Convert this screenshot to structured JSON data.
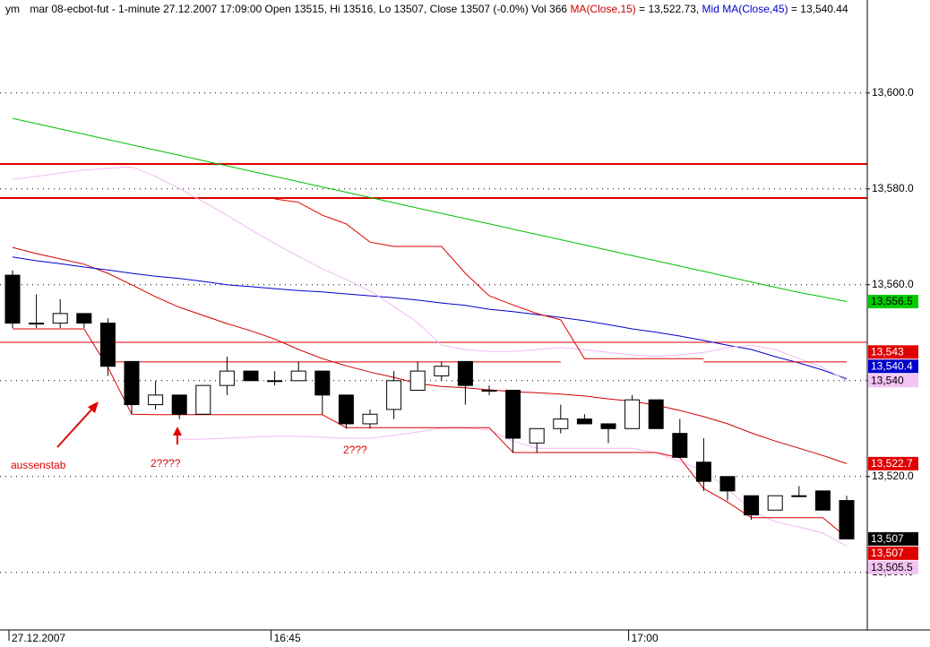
{
  "chart_data": {
    "type": "candlestick",
    "header": {
      "symbol": "ym",
      "info": "mar 08-ecbot-fut - 1-minute 27.12.2007 17:09:00 Open 13515, Hi 13516, Lo 13507, Close 13507 (-0.0%) Vol 366",
      "ma15_value": "= 13,522.73,",
      "ma45_value": "= 13,540.44"
    },
    "categories": [
      "27.12.2007",
      null,
      null,
      null,
      null,
      null,
      null,
      null,
      null,
      null,
      null,
      "16:45",
      null,
      null,
      null,
      null,
      null,
      null,
      null,
      null,
      null,
      null,
      null,
      null,
      null,
      null,
      "17:00",
      null,
      null,
      null,
      null,
      null,
      null,
      null,
      null,
      null
    ],
    "open": [
      13562,
      13552,
      13552,
      13554,
      13552,
      13544,
      13535,
      13537,
      13533,
      13539,
      13542,
      13540,
      13540,
      13542,
      13537,
      13531,
      13534,
      13538,
      13541,
      13544,
      13538,
      13538,
      13527,
      13530,
      13532,
      13531,
      13530,
      13536,
      13529,
      13523,
      13520,
      13516,
      13513,
      13516,
      13517,
      13515
    ],
    "high": [
      13563,
      13558,
      13557,
      13554,
      13553,
      13544,
      13540,
      13537,
      13539,
      13545,
      13542,
      13542,
      13544,
      13542,
      13537,
      13534,
      13542,
      13544,
      13544,
      13544,
      13539,
      13538,
      13530,
      13535,
      13533,
      13531,
      13537,
      13536,
      13532,
      13528,
      13520,
      13516,
      13516,
      13518,
      13517,
      13516
    ],
    "low": [
      13551,
      13551,
      13551,
      13551,
      13541,
      13533,
      13534,
      13532,
      13533,
      13537,
      13540,
      13539,
      13540,
      13533,
      13530,
      13530,
      13532,
      13538,
      13540,
      13535,
      13537,
      13525,
      13525,
      13529,
      13531,
      13527,
      13530,
      13530,
      13524,
      13517,
      13515,
      13511,
      13513,
      13516,
      13513,
      13507
    ],
    "close": [
      13552,
      13552,
      13554,
      13552,
      13543,
      13535,
      13537,
      13533,
      13539,
      13542,
      13540,
      13540,
      13542,
      13537,
      13531,
      13533,
      13540,
      13542,
      13543,
      13539,
      13538,
      13528,
      13530,
      13532,
      13531,
      13530,
      13536,
      13530,
      13524,
      13519,
      13517,
      13512,
      13516,
      13516,
      13513,
      13507
    ],
    "up_color": "#ffffff",
    "down_color": "#000000",
    "lines": [
      {
        "name": "MA(Close,15)",
        "color": "#cc0000",
        "values": [
          13567.8,
          13566.5,
          13565.4,
          13564.3,
          13562.4,
          13560.0,
          13557.5,
          13555.3,
          13553.6,
          13551.9,
          13550.4,
          13548.7,
          13546.5,
          13544.6,
          13543.1,
          13541.8,
          13540.7,
          13539.4,
          13538.8,
          13538.5,
          13538.1,
          13537.7,
          13537.5,
          13537.2,
          13536.8,
          13536.2,
          13535.7,
          13534.9,
          13533.8,
          13532.5,
          13531.0,
          13529.1,
          13527.4,
          13525.9,
          13524.4,
          13522.7
        ]
      },
      {
        "name": "Mid MA(Close,45)",
        "color": "#0000cc",
        "values": [
          13565.8,
          13565.0,
          13564.4,
          13563.7,
          13563.1,
          13562.4,
          13561.8,
          13561.3,
          13560.7,
          13560.0,
          13559.6,
          13559.2,
          13558.8,
          13558.5,
          13558.1,
          13557.7,
          13557.3,
          13556.8,
          13556.2,
          13555.7,
          13554.9,
          13554.4,
          13553.8,
          13553.2,
          13552.5,
          13551.7,
          13550.8,
          13550.1,
          13549.3,
          13548.4,
          13547.4,
          13546.5,
          13545.0,
          13543.7,
          13542.2,
          13540.4
        ]
      },
      {
        "color": "#00c000",
        "values": [
          13594.7,
          13593.6,
          13592.5,
          13591.4,
          13590.3,
          13589.2,
          13588.1,
          13587.0,
          13585.9,
          13584.8,
          13583.7,
          13582.6,
          13581.5,
          13580.4,
          13579.3,
          13578.2,
          13577.1,
          13576.0,
          13574.9,
          13573.8,
          13572.7,
          13571.6,
          13570.5,
          13569.4,
          13568.3,
          13567.2,
          13566.1,
          13565.0,
          13563.9,
          13562.8,
          13561.7,
          13560.6,
          13559.5,
          13558.4,
          13557.5,
          13556.5
        ]
      },
      {
        "color": "#f4b8f4",
        "values": [
          13582.0,
          13582.6,
          13583.3,
          13583.9,
          13584.3,
          13584.6,
          13582.6,
          13580.1,
          13577.3,
          13574.5,
          13571.5,
          13568.6,
          13565.9,
          13563.3,
          13561.1,
          13558.7,
          13555.5,
          13552.1,
          13547.4,
          13546.5,
          13546.1,
          13546.1,
          13546.5,
          13546.9,
          13546.5,
          13545.9,
          13545.4,
          13545.0,
          13545.4,
          13545.9,
          13546.9,
          13547.4,
          13546.5,
          13544.6,
          13542.8,
          13540.0
        ]
      },
      {
        "color": "#f4b8f4",
        "values": [
          null,
          null,
          null,
          null,
          null,
          null,
          null,
          13527.8,
          13527.8,
          13528.0,
          13528.2,
          13528.4,
          13528.4,
          13528.2,
          13528.0,
          13528.0,
          13528.6,
          13529.3,
          13530.1,
          13530.1,
          13529.7,
          13527.4,
          13525.9,
          13525.9,
          13525.9,
          13525.9,
          13525.9,
          13525.0,
          13523.1,
          13521.3,
          13517.5,
          13512.9,
          13510.6,
          13509.5,
          13508.2,
          13505.5
        ]
      },
      {
        "color": "#dd0000",
        "values": [
          null,
          null,
          null,
          null,
          null,
          null,
          null,
          null,
          null,
          null,
          null,
          13577.9,
          13577.2,
          13574.5,
          13572.7,
          13568.9,
          13568.0,
          13568.0,
          13568.0,
          13562.4,
          13557.7,
          13555.8,
          13554.0,
          13552.7,
          13544.6,
          13544.6,
          13544.6,
          13544.6,
          13544.6,
          13544.6,
          null,
          null,
          null,
          null,
          null,
          null
        ]
      },
      {
        "color": "#dd0000",
        "values": [
          13550.8,
          13550.8,
          13550.8,
          13550.8,
          13542.8,
          13533.0,
          13532.9,
          13532.9,
          13532.9,
          13532.9,
          13532.9,
          13532.9,
          13532.9,
          13532.9,
          13530.2,
          13530.2,
          13530.2,
          13530.2,
          13530.2,
          13530.2,
          13530.2,
          13525.0,
          13525.0,
          13525.0,
          13525.0,
          13525.0,
          13525.0,
          13525.0,
          13523.9,
          13517.5,
          13514.7,
          13511.4,
          13511.4,
          13511.4,
          13511.4,
          13507.3
        ]
      },
      {
        "color": "#dd0000",
        "values": [
          null,
          null,
          null,
          null,
          13543.9,
          13543.9,
          13543.9,
          13543.9,
          13543.9,
          13543.9,
          13543.9,
          13543.9,
          13543.9,
          13543.9,
          13543.9,
          13543.9,
          13543.9,
          13543.9,
          13543.9,
          13543.9,
          13543.9,
          13543.9,
          13543.9,
          13543.9,
          null,
          null,
          null,
          null,
          null,
          13543.9,
          13543.9,
          13543.9,
          13543.9,
          13543.9,
          13543.9,
          13543.9
        ]
      }
    ],
    "levels": [
      {
        "value": 13585.2,
        "color": "#dd0000",
        "width": 2
      },
      {
        "value": 13578.1,
        "color": "#dd0000",
        "width": 2
      },
      {
        "value": 13548.0,
        "color": "#dd0000",
        "width": 1
      }
    ],
    "price_labels": [
      {
        "value": 13556.5,
        "label": "13,556.5",
        "color": "#00cc00"
      },
      {
        "value": 13543,
        "label": "13,543",
        "color": "#e00000"
      },
      {
        "value": 13540.4,
        "label": "13,540.4",
        "color": "#0000cc"
      },
      {
        "value": 13540,
        "label": "13,540",
        "color": "#f4c4f4"
      },
      {
        "value": 13522.7,
        "label": "13,522.7",
        "color": "#e00000"
      },
      {
        "value": 13507,
        "label": "13,507",
        "color": "#000000"
      },
      {
        "value": 13507,
        "label": "13,507",
        "color": "#e00000"
      },
      {
        "value": 13505.5,
        "label": "13,505.5",
        "color": "#f4c4f4"
      }
    ],
    "ylim": [
      13488,
      13619.4
    ],
    "yticks": [
      {
        "value": 13600,
        "label": "13,600.0"
      },
      {
        "value": 13580,
        "label": "13,580.0"
      },
      {
        "value": 13560,
        "label": "13,560.0"
      },
      {
        "value": 13540,
        "label": "13,540.0"
      },
      {
        "value": 13520,
        "label": "13,520.0"
      },
      {
        "value": 13500,
        "label": "13,500.0"
      }
    ],
    "grid": true,
    "annotations": [
      "aussenstab",
      "2????",
      "2???"
    ]
  }
}
